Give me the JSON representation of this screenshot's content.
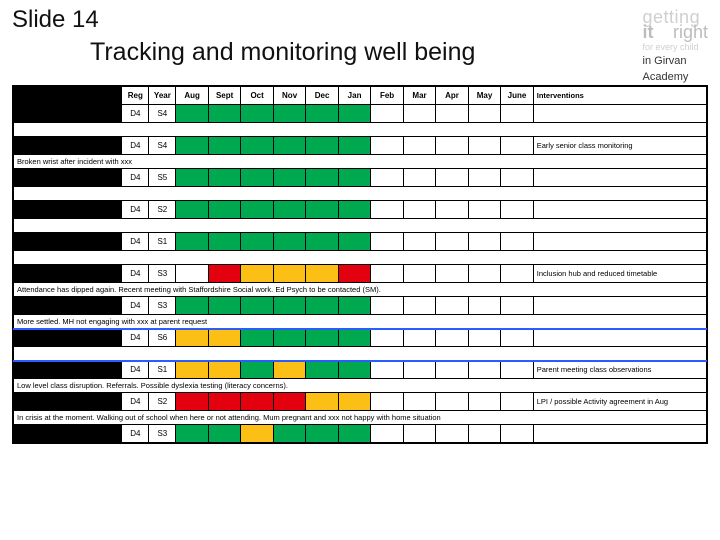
{
  "slide_label": "Slide 14",
  "title": "Tracking and monitoring well being",
  "logo": {
    "line1": "getting",
    "line2a": "it",
    "line2b": "right",
    "line3": "for every child",
    "line4a": "in Girvan",
    "line4b": "Academy"
  },
  "columns": {
    "reg": "Reg",
    "year": "Year",
    "months": [
      "Aug",
      "Sept",
      "Oct",
      "Nov",
      "Dec",
      "Jan",
      "Feb",
      "Mar",
      "Apr",
      "May",
      "June"
    ],
    "interventions": "Interventions"
  },
  "colors": {
    "green": "#00a84f",
    "amber": "#fcbf16",
    "red": "#e3000f",
    "black": "#000000"
  },
  "rows": [
    {
      "type": "data",
      "reg": "D4",
      "year": "S4",
      "cells": [
        "green",
        "green",
        "green",
        "green",
        "green",
        "green",
        "",
        "",
        "",
        "",
        ""
      ],
      "intervention": ""
    },
    {
      "type": "note",
      "text": ""
    },
    {
      "type": "data",
      "reg": "D4",
      "year": "S4",
      "cells": [
        "green",
        "green",
        "green",
        "green",
        "green",
        "green",
        "",
        "",
        "",
        "",
        ""
      ],
      "intervention": "Early senior class monitoring"
    },
    {
      "type": "note",
      "text": "Broken wrist after incident with xxx"
    },
    {
      "type": "data",
      "reg": "D4",
      "year": "S5",
      "cells": [
        "green",
        "green",
        "green",
        "green",
        "green",
        "green",
        "",
        "",
        "",
        "",
        ""
      ],
      "intervention": ""
    },
    {
      "type": "note",
      "text": ""
    },
    {
      "type": "data",
      "reg": "D4",
      "year": "S2",
      "cells": [
        "green",
        "green",
        "green",
        "green",
        "green",
        "green",
        "",
        "",
        "",
        "",
        ""
      ],
      "intervention": ""
    },
    {
      "type": "note",
      "text": ""
    },
    {
      "type": "data",
      "reg": "D4",
      "year": "S1",
      "cells": [
        "green",
        "green",
        "green",
        "green",
        "green",
        "green",
        "",
        "",
        "",
        "",
        ""
      ],
      "intervention": ""
    },
    {
      "type": "note",
      "text": ""
    },
    {
      "type": "data",
      "reg": "D4",
      "year": "S3",
      "cells": [
        "",
        "red",
        "amber",
        "amber",
        "amber",
        "red",
        "",
        "",
        "",
        "",
        ""
      ],
      "intervention": "Inclusion hub and reduced timetable"
    },
    {
      "type": "note",
      "text": "Attendance has dipped again. Recent meeting with Staffordshire Social work. Ed Psych to be contacted (SM)."
    },
    {
      "type": "data",
      "reg": "D4",
      "year": "S3",
      "cells": [
        "green",
        "green",
        "green",
        "green",
        "green",
        "green",
        "",
        "",
        "",
        "",
        ""
      ],
      "intervention": ""
    },
    {
      "type": "note",
      "text": "More settled. MH not engaging with xxx at parent request"
    },
    {
      "type": "data",
      "reg": "D4",
      "year": "S6",
      "cells": [
        "amber",
        "amber",
        "green",
        "green",
        "green",
        "green",
        "",
        "",
        "",
        "",
        ""
      ],
      "intervention": "",
      "blueTop": true
    },
    {
      "type": "note",
      "text": "",
      "blueBottom": true
    },
    {
      "type": "data",
      "reg": "D4",
      "year": "S1",
      "cells": [
        "amber",
        "amber",
        "green",
        "amber",
        "green",
        "green",
        "",
        "",
        "",
        "",
        ""
      ],
      "intervention": "Parent meeting class observations"
    },
    {
      "type": "note",
      "text": "Low level class disruption. Referrals. Possible dyslexia testing (literacy concerns)."
    },
    {
      "type": "data",
      "reg": "D4",
      "year": "S2",
      "cells": [
        "red",
        "red",
        "red",
        "red",
        "amber",
        "amber",
        "",
        "",
        "",
        "",
        ""
      ],
      "intervention": "LPI / possible Activity agreement in Aug"
    },
    {
      "type": "note",
      "text": "In crisis at the moment. Walking out of school when here or not attending. Mum pregnant and xxx not happy with home situation"
    },
    {
      "type": "data",
      "reg": "D4",
      "year": "S3",
      "cells": [
        "green",
        "green",
        "amber",
        "green",
        "green",
        "green",
        "",
        "",
        "",
        "",
        ""
      ],
      "intervention": ""
    }
  ]
}
